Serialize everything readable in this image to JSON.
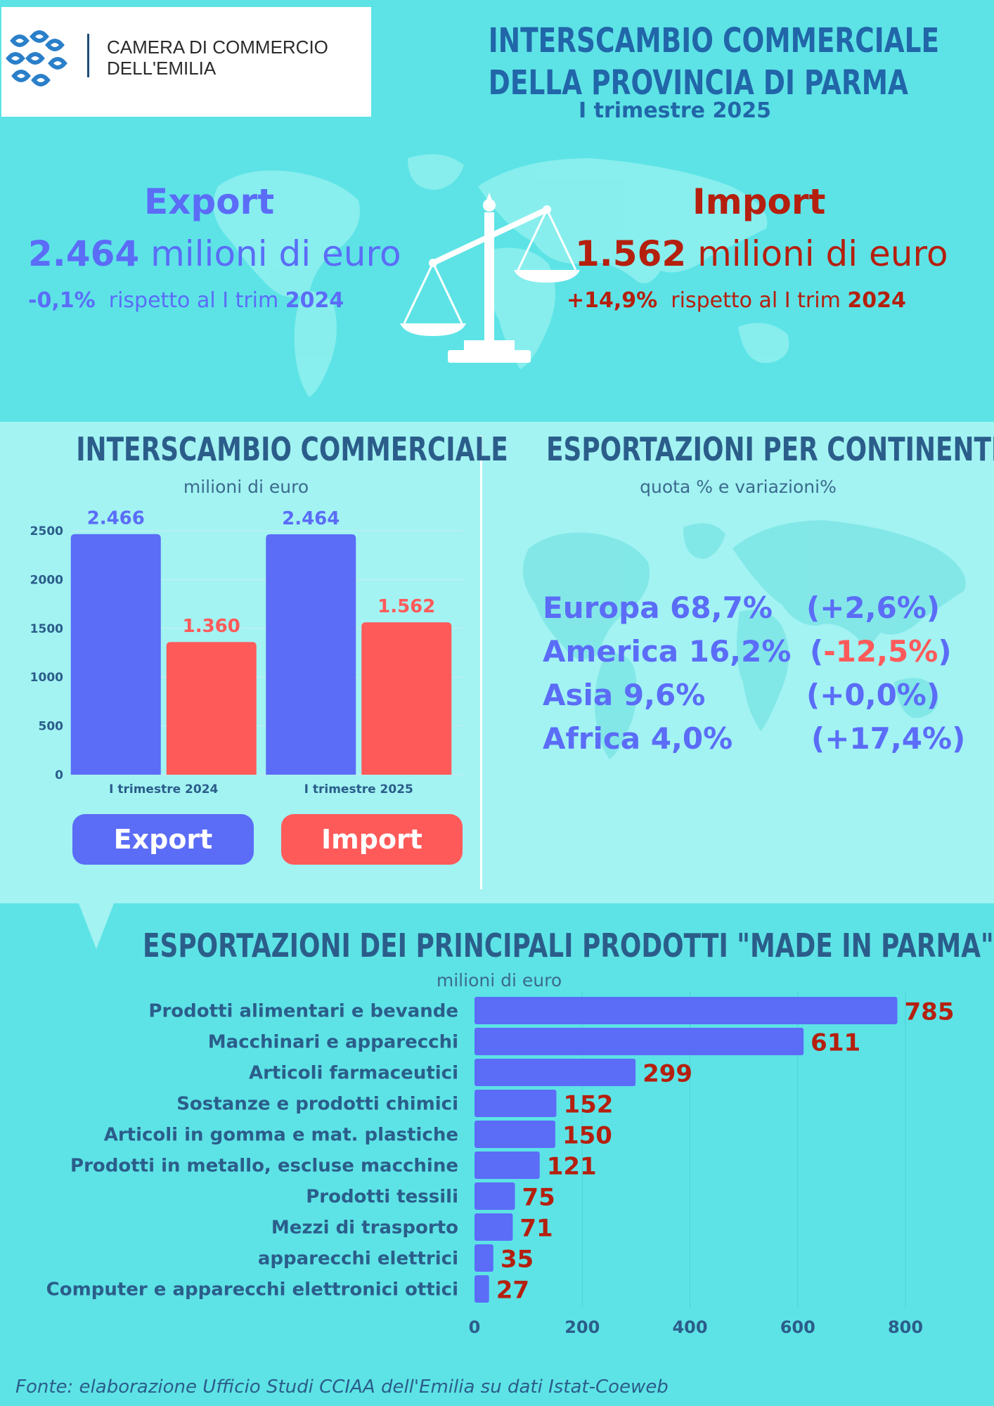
{
  "header": {
    "logo_line1": "CAMERA DI COMMERCIO",
    "logo_line2": "DELL'EMILIA",
    "title_line1": "INTERSCAMBIO COMMERCIALE",
    "title_line2": "DELLA PROVINCIA DI PARMA",
    "subtitle": "I trimestre 2025"
  },
  "summary": {
    "export": {
      "label": "Export",
      "value": "2.464",
      "unit": "milioni di euro",
      "change": "-0,1%",
      "change_text": "rispetto al I trim",
      "year": "2024"
    },
    "import": {
      "label": "Import",
      "value": "1.562",
      "unit": "milioni di euro",
      "change": "+14,9%",
      "change_text": "rispetto al I trim",
      "year": "2024"
    }
  },
  "colors": {
    "export": "#5b6cf7",
    "import": "#ff5a5a",
    "import_dark": "#b51f0e",
    "title": "#2b5d8a"
  },
  "icons": {
    "scale": "balance-scale-icon",
    "logo": "chamber-logo-icon",
    "map": "world-map-icon"
  },
  "interscambio": {
    "title": "INTERSCAMBIO COMMERCIALE",
    "subtitle": "milioni di euro",
    "legend_export": "Export",
    "legend_import": "Import"
  },
  "continents": {
    "title": "ESPORTAZIONI PER CONTINENTE",
    "subtitle": "quota %  e variazioni%",
    "rows": [
      {
        "name": "Europa 68,7%",
        "open": "(",
        "change": "+2,6%",
        "close": ")",
        "negative": false
      },
      {
        "name": "America 16,2%",
        "open": "(",
        "change": "-12,5%",
        "close": ")",
        "negative": true
      },
      {
        "name": "Asia 9,6%",
        "open": "(",
        "change": "+0,0%",
        "close": ")",
        "negative": false
      },
      {
        "name": "Africa 4,0%",
        "open": "(",
        "change": "+17,4%",
        "close": ")",
        "negative": false
      }
    ]
  },
  "products": {
    "title": "ESPORTAZIONI DEI PRINCIPALI PRODOTTI \"MADE IN PARMA\"",
    "subtitle": "milioni di euro"
  },
  "footer": {
    "source": "Fonte: elaborazione Ufficio Studi CCIAA dell'Emilia su dati Istat-Coeweb"
  },
  "chart_data": [
    {
      "type": "bar",
      "categories": [
        "I trimestre 2024",
        "I trimestre 2025"
      ],
      "series": [
        {
          "name": "Export",
          "values": [
            2466,
            2464
          ],
          "labels": [
            "2.466",
            "2.464"
          ]
        },
        {
          "name": "Import",
          "values": [
            1360,
            1562
          ],
          "labels": [
            "1.360",
            "1.562"
          ]
        }
      ],
      "ylim": [
        0,
        2500
      ],
      "yticks": [
        0,
        500,
        1000,
        1500,
        2000,
        2500
      ],
      "grid": true
    },
    {
      "type": "bar",
      "orientation": "horizontal",
      "categories": [
        "Prodotti alimentari e bevande",
        "Macchinari e apparecchi",
        "Articoli farmaceutici",
        "Sostanze e prodotti chimici",
        "Articoli in gomma e mat. plastiche",
        "Prodotti in metallo, escluse macchine",
        "Prodotti tessili",
        "Mezzi di trasporto",
        "apparecchi elettrici",
        "Computer e apparecchi elettronici ottici"
      ],
      "values": [
        785,
        611,
        299,
        152,
        150,
        121,
        75,
        71,
        35,
        27
      ],
      "xlim": [
        0,
        850
      ],
      "xticks": [
        0,
        200,
        400,
        600,
        800
      ],
      "grid": true
    }
  ]
}
